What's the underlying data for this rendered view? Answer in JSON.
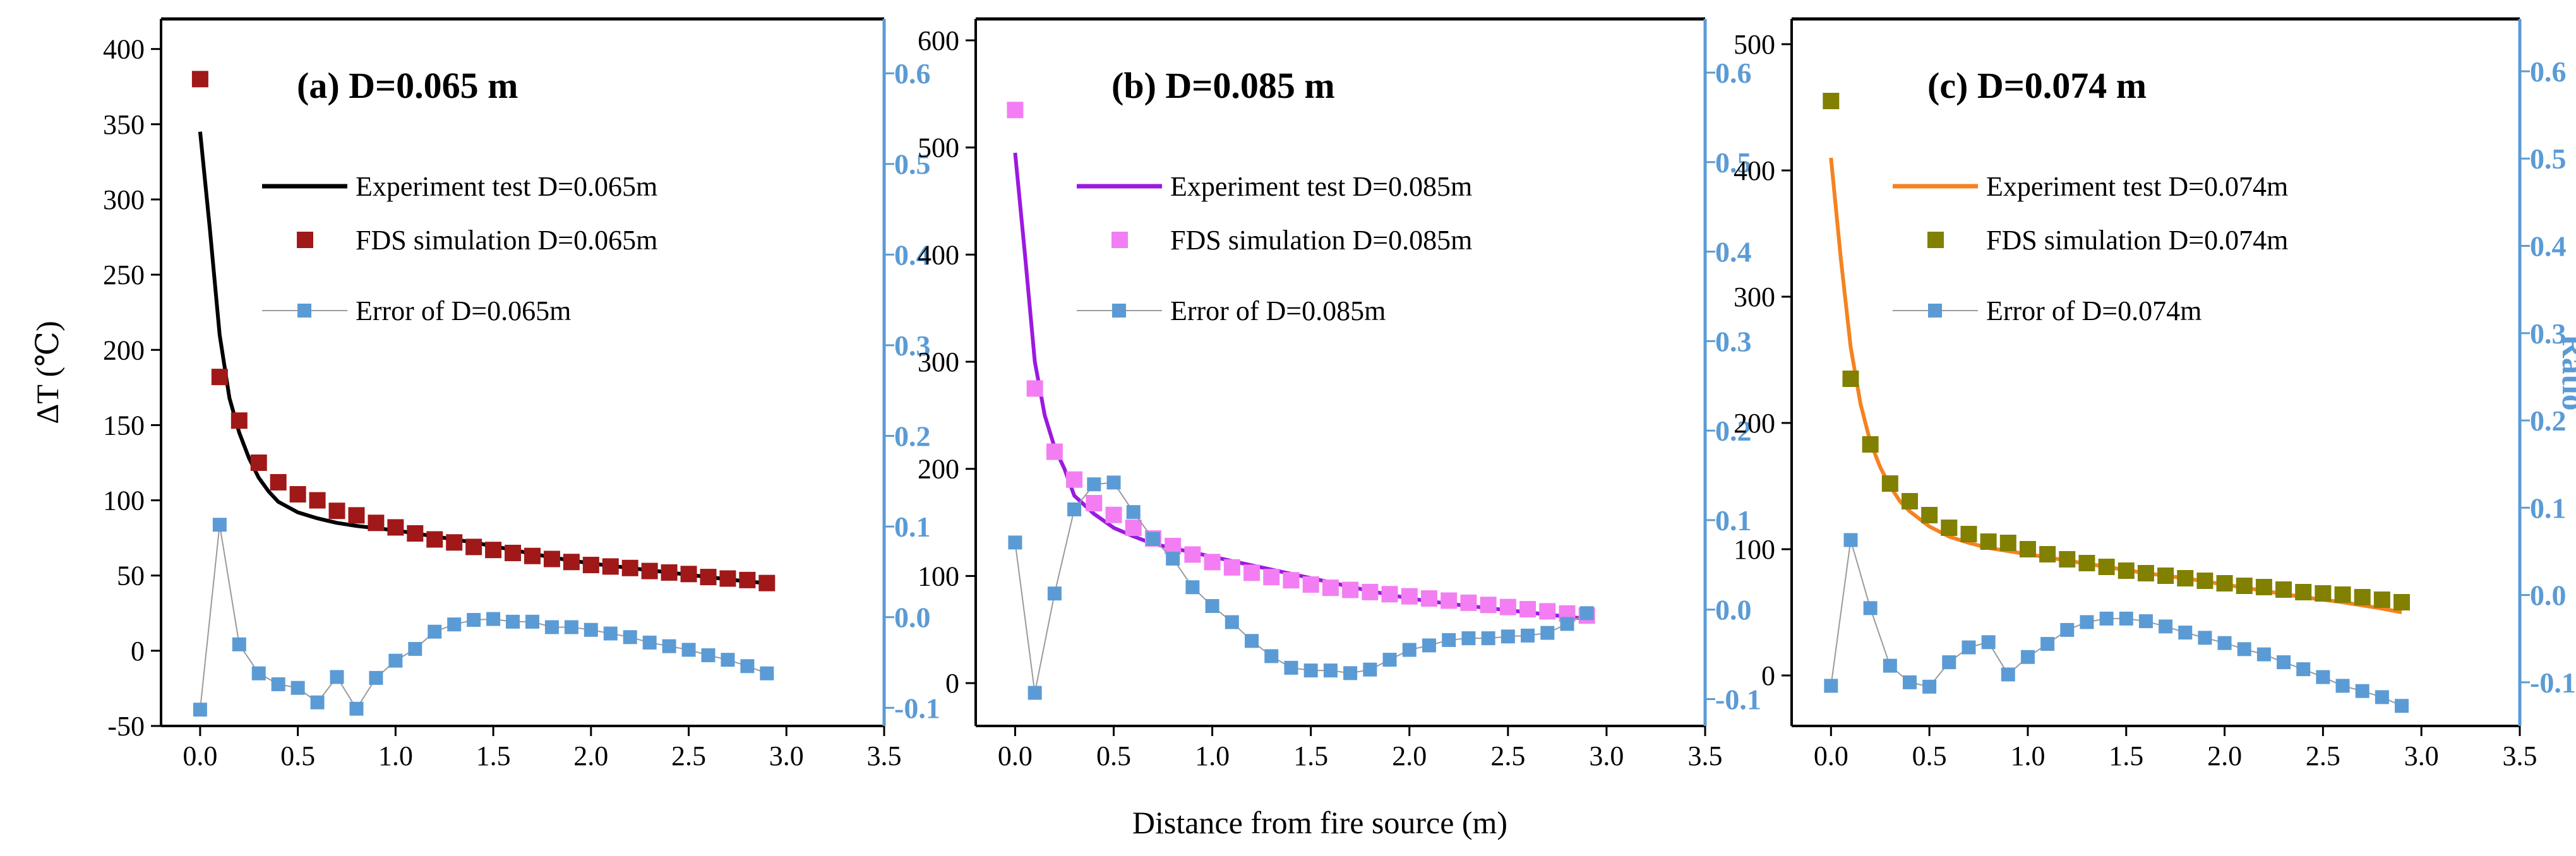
{
  "figure": {
    "xlabel": "Distance from fire source (m)",
    "left_ylabel": "ΔT (℃)",
    "right_ylabel": "Ratio"
  },
  "chart_data": [
    {
      "id": "a",
      "type": "line+scatter",
      "title": "(a) D=0.065 m",
      "xlim": [
        -0.2,
        3.5
      ],
      "xticks": [
        0.0,
        0.5,
        1.0,
        1.5,
        2.0,
        2.5,
        3.0,
        3.5
      ],
      "ylim_left": [
        -50,
        420
      ],
      "yticks_left": [
        -50,
        0,
        50,
        100,
        150,
        200,
        250,
        300,
        350,
        400
      ],
      "ylim_right": [
        -0.12,
        0.66
      ],
      "yticks_right": [
        -0.1,
        0.0,
        0.1,
        0.2,
        0.3,
        0.4,
        0.5,
        0.6
      ],
      "colors": {
        "experiment": "#000000",
        "fds": "#a01818",
        "error": "#5b9bd5"
      },
      "legend": [
        {
          "key": "experiment",
          "label": "Experiment test D=0.065m"
        },
        {
          "key": "fds",
          "label": "FDS simulation D=0.065m"
        },
        {
          "key": "error",
          "label": "Error of D=0.065m"
        }
      ],
      "series": [
        {
          "name": "Experiment test D=0.065m",
          "kind": "line",
          "axis": "left",
          "x": [
            0.0,
            0.05,
            0.1,
            0.15,
            0.2,
            0.25,
            0.3,
            0.35,
            0.4,
            0.5,
            0.6,
            0.7,
            0.8,
            1.0,
            1.2,
            1.4,
            1.6,
            1.8,
            2.0,
            2.2,
            2.4,
            2.6,
            2.8,
            2.9
          ],
          "y": [
            345,
            280,
            210,
            168,
            145,
            128,
            115,
            106,
            99,
            92,
            88,
            85,
            83,
            80,
            76,
            72,
            67,
            62,
            58,
            55,
            52,
            49,
            46,
            45
          ]
        },
        {
          "name": "FDS simulation D=0.065m",
          "kind": "scatter",
          "axis": "left",
          "x": [
            0.0,
            0.1,
            0.2,
            0.3,
            0.4,
            0.5,
            0.6,
            0.7,
            0.8,
            0.9,
            1.0,
            1.1,
            1.2,
            1.3,
            1.4,
            1.5,
            1.6,
            1.7,
            1.8,
            1.9,
            2.0,
            2.1,
            2.2,
            2.3,
            2.4,
            2.5,
            2.6,
            2.7,
            2.8,
            2.9
          ],
          "y": [
            380,
            182,
            153,
            125,
            112,
            104,
            100,
            93,
            90,
            85,
            82,
            78,
            74,
            72,
            69,
            67,
            65,
            63,
            61,
            59,
            57,
            56,
            55,
            53,
            52,
            51,
            49,
            48,
            47,
            45
          ]
        },
        {
          "name": "Error of D=0.065m",
          "kind": "line+scatter",
          "axis": "right",
          "x": [
            0.0,
            0.1,
            0.2,
            0.3,
            0.4,
            0.5,
            0.6,
            0.7,
            0.8,
            0.9,
            1.0,
            1.1,
            1.2,
            1.3,
            1.4,
            1.5,
            1.6,
            1.7,
            1.8,
            1.9,
            2.0,
            2.1,
            2.2,
            2.3,
            2.4,
            2.5,
            2.6,
            2.7,
            2.8,
            2.9
          ],
          "y": [
            -0.102,
            0.102,
            -0.03,
            -0.062,
            -0.074,
            -0.078,
            -0.094,
            -0.066,
            -0.101,
            -0.067,
            -0.048,
            -0.035,
            -0.016,
            -0.008,
            -0.003,
            -0.002,
            -0.005,
            -0.005,
            -0.011,
            -0.011,
            -0.014,
            -0.018,
            -0.022,
            -0.028,
            -0.032,
            -0.036,
            -0.042,
            -0.047,
            -0.054,
            -0.062
          ]
        }
      ]
    },
    {
      "id": "b",
      "type": "line+scatter",
      "title": "(b) D=0.085 m",
      "xlim": [
        -0.2,
        3.5
      ],
      "xticks": [
        0.0,
        0.5,
        1.0,
        1.5,
        2.0,
        2.5,
        3.0,
        3.5
      ],
      "ylim_left": [
        -40,
        620
      ],
      "yticks_left": [
        0,
        100,
        200,
        300,
        400,
        500,
        600
      ],
      "ylim_right": [
        -0.13,
        0.66
      ],
      "yticks_right": [
        -0.1,
        0.0,
        0.1,
        0.2,
        0.3,
        0.4,
        0.5,
        0.6
      ],
      "colors": {
        "experiment": "#9b19e0",
        "fds": "#f37ef3",
        "error": "#5b9bd5"
      },
      "legend": [
        {
          "key": "experiment",
          "label": "Experiment test D=0.085m"
        },
        {
          "key": "fds",
          "label": "FDS simulation D=0.085m"
        },
        {
          "key": "error",
          "label": "Error of D=0.085m"
        }
      ],
      "series": [
        {
          "name": "Experiment test D=0.085m",
          "kind": "line",
          "axis": "left",
          "x": [
            0.0,
            0.05,
            0.1,
            0.15,
            0.2,
            0.25,
            0.3,
            0.4,
            0.5,
            0.6,
            0.7,
            0.8,
            1.0,
            1.2,
            1.4,
            1.6,
            1.8,
            2.0,
            2.2,
            2.4,
            2.6,
            2.8,
            2.9
          ],
          "y": [
            495,
            400,
            300,
            250,
            220,
            200,
            175,
            158,
            145,
            137,
            130,
            126,
            118,
            110,
            102,
            94,
            86,
            79,
            74,
            70,
            66,
            62,
            60
          ]
        },
        {
          "name": "FDS simulation D=0.085m",
          "kind": "scatter",
          "axis": "left",
          "x": [
            0.0,
            0.1,
            0.2,
            0.3,
            0.4,
            0.5,
            0.6,
            0.7,
            0.8,
            0.9,
            1.0,
            1.1,
            1.2,
            1.3,
            1.4,
            1.5,
            1.6,
            1.7,
            1.8,
            1.9,
            2.0,
            2.1,
            2.2,
            2.3,
            2.4,
            2.5,
            2.6,
            2.7,
            2.8,
            2.9
          ],
          "y": [
            535,
            275,
            216,
            190,
            168,
            157,
            145,
            135,
            128,
            120,
            113,
            108,
            103,
            99,
            96,
            92,
            89,
            87,
            85,
            83,
            81,
            79,
            77,
            75,
            73,
            71,
            69,
            67,
            65,
            63
          ]
        },
        {
          "name": "Error of D=0.085m",
          "kind": "line+scatter",
          "axis": "right",
          "x": [
            0.0,
            0.1,
            0.2,
            0.3,
            0.4,
            0.5,
            0.6,
            0.7,
            0.8,
            0.9,
            1.0,
            1.1,
            1.2,
            1.3,
            1.4,
            1.5,
            1.6,
            1.7,
            1.8,
            1.9,
            2.0,
            2.1,
            2.2,
            2.3,
            2.4,
            2.5,
            2.6,
            2.7,
            2.8,
            2.9
          ],
          "y": [
            0.075,
            -0.093,
            0.018,
            0.112,
            0.14,
            0.142,
            0.109,
            0.079,
            0.057,
            0.025,
            0.004,
            -0.014,
            -0.035,
            -0.052,
            -0.065,
            -0.068,
            -0.068,
            -0.071,
            -0.067,
            -0.056,
            -0.045,
            -0.04,
            -0.034,
            -0.032,
            -0.032,
            -0.03,
            -0.029,
            -0.026,
            -0.016,
            -0.004
          ]
        }
      ]
    },
    {
      "id": "c",
      "type": "line+scatter",
      "title": "(c) D=0.074 m",
      "xlim": [
        -0.2,
        3.5
      ],
      "xticks": [
        0.0,
        0.5,
        1.0,
        1.5,
        2.0,
        2.5,
        3.0,
        3.5
      ],
      "ylim_left": [
        -40,
        520
      ],
      "yticks_left": [
        0,
        100,
        200,
        300,
        400,
        500
      ],
      "ylim_right": [
        -0.15,
        0.66
      ],
      "yticks_right": [
        -0.1,
        0.0,
        0.1,
        0.2,
        0.3,
        0.4,
        0.5,
        0.6
      ],
      "colors": {
        "experiment": "#f5821f",
        "fds": "#818000",
        "error": "#5b9bd5"
      },
      "legend": [
        {
          "key": "experiment",
          "label": "Experiment test D=0.074m"
        },
        {
          "key": "fds",
          "label": "FDS simulation D=0.074m"
        },
        {
          "key": "error",
          "label": "Error of D=0.074m"
        }
      ],
      "series": [
        {
          "name": "Experiment test D=0.074m",
          "kind": "line",
          "axis": "left",
          "x": [
            0.0,
            0.05,
            0.1,
            0.15,
            0.2,
            0.25,
            0.3,
            0.35,
            0.4,
            0.5,
            0.6,
            0.7,
            0.8,
            1.0,
            1.2,
            1.4,
            1.6,
            1.8,
            2.0,
            2.2,
            2.4,
            2.6,
            2.8,
            2.9
          ],
          "y": [
            410,
            330,
            260,
            215,
            185,
            165,
            150,
            138,
            130,
            118,
            110,
            105,
            101,
            96,
            91,
            86,
            81,
            77,
            72,
            67,
            62,
            58,
            53,
            50
          ]
        },
        {
          "name": "FDS simulation D=0.074m",
          "kind": "scatter",
          "axis": "left",
          "x": [
            0.0,
            0.1,
            0.2,
            0.3,
            0.4,
            0.5,
            0.6,
            0.7,
            0.8,
            0.9,
            1.0,
            1.1,
            1.2,
            1.3,
            1.4,
            1.5,
            1.6,
            1.7,
            1.8,
            1.9,
            2.0,
            2.1,
            2.2,
            2.3,
            2.4,
            2.5,
            2.6,
            2.7,
            2.8,
            2.9
          ],
          "y": [
            455,
            235,
            183,
            152,
            138,
            127,
            117,
            112,
            106,
            105,
            100,
            96,
            92,
            89,
            86,
            83,
            81,
            79,
            77,
            75,
            73,
            71,
            70,
            68,
            66,
            65,
            64,
            62,
            60,
            58
          ]
        },
        {
          "name": "Error of D=0.074m",
          "kind": "line+scatter",
          "axis": "right",
          "x": [
            0.0,
            0.1,
            0.2,
            0.3,
            0.4,
            0.5,
            0.6,
            0.7,
            0.8,
            0.9,
            1.0,
            1.1,
            1.2,
            1.3,
            1.4,
            1.5,
            1.6,
            1.7,
            1.8,
            1.9,
            2.0,
            2.1,
            2.2,
            2.3,
            2.4,
            2.5,
            2.6,
            2.7,
            2.8,
            2.9
          ],
          "y": [
            -0.104,
            0.063,
            -0.015,
            -0.081,
            -0.1,
            -0.105,
            -0.077,
            -0.06,
            -0.054,
            -0.091,
            -0.071,
            -0.056,
            -0.04,
            -0.031,
            -0.027,
            -0.027,
            -0.03,
            -0.036,
            -0.043,
            -0.049,
            -0.055,
            -0.062,
            -0.068,
            -0.077,
            -0.085,
            -0.094,
            -0.104,
            -0.11,
            -0.117,
            -0.127
          ]
        }
      ]
    }
  ]
}
